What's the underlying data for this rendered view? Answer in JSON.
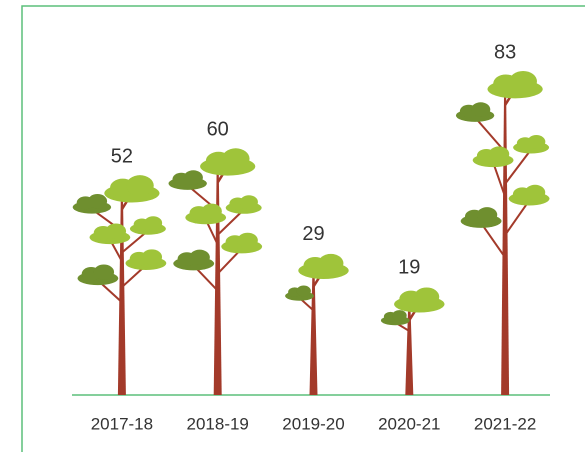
{
  "chart_data": {
    "type": "pictorial",
    "categories": [
      "2017-18",
      "2018-19",
      "2019-20",
      "2020-21",
      "2021-22"
    ],
    "values": [
      52,
      60,
      29,
      19,
      83
    ],
    "color": "#9fc43a"
  }
}
